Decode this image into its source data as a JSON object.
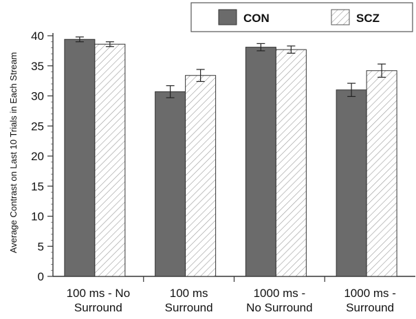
{
  "chart_data": {
    "type": "bar",
    "title": "",
    "xlabel": "",
    "ylabel": "Average Contrast on Last 10 Trials in Each Stream",
    "ylim": [
      0,
      40
    ],
    "yticks": [
      0,
      5,
      10,
      15,
      20,
      25,
      30,
      35,
      40
    ],
    "categories": [
      [
        "100 ms - No",
        "Surround"
      ],
      [
        "100 ms",
        "Surround"
      ],
      [
        "1000 ms -",
        "No Surround"
      ],
      [
        "1000 ms -",
        "Surround"
      ]
    ],
    "series": [
      {
        "name": "CON",
        "values": [
          39.4,
          30.7,
          38.1,
          31.0
        ],
        "errors": [
          0.4,
          1.0,
          0.6,
          1.1
        ],
        "color": "#6b6b6b",
        "pattern": "solid"
      },
      {
        "name": "SCZ",
        "values": [
          38.6,
          33.4,
          37.7,
          34.2
        ],
        "errors": [
          0.4,
          1.0,
          0.6,
          1.1
        ],
        "color": "#ffffff",
        "pattern": "hatched"
      }
    ],
    "legend_position": "top-right",
    "grid": false
  }
}
